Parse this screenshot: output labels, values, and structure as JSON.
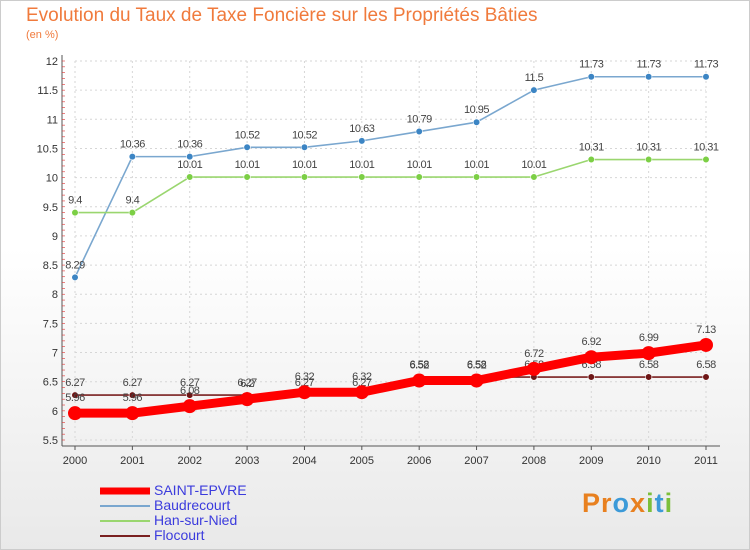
{
  "title": "Evolution du Taux de Taxe Foncière sur les Propriétés Bâties",
  "subtitle": "(en %)",
  "logo": {
    "text": "Proxiti",
    "letters": [
      "P",
      "r",
      "o",
      "x",
      "i",
      "t",
      "i"
    ],
    "colors": [
      "#e8801f",
      "#e8801f",
      "#3c9ad8",
      "#e8801f",
      "#7cbf3a",
      "#3c9ad8",
      "#7cbf3a"
    ]
  },
  "colors": {
    "title": "#f07a3c",
    "legend_text": "#3b3bdd",
    "axis_text": "#333333"
  },
  "chart_data": {
    "type": "line",
    "title": "Evolution du Taux de Taxe Foncière sur les Propriétés Bâties",
    "ylabel": "(en %)",
    "xlabel": "",
    "ylim": [
      5.5,
      12
    ],
    "yticks": [
      5.5,
      6,
      6.5,
      7,
      7.5,
      8,
      8.5,
      9,
      9.5,
      10,
      10.5,
      11,
      11.5,
      12
    ],
    "ytick_labels": [
      "5.5",
      "6",
      "6.5",
      "7",
      "7.5",
      "8",
      "8.5",
      "9",
      "9.5",
      "10",
      "10.5",
      "11",
      "11.5",
      "12"
    ],
    "x": [
      "2000",
      "2001",
      "2002",
      "2003",
      "2004",
      "2005",
      "2006",
      "2007",
      "2008",
      "2009",
      "2010",
      "2011"
    ],
    "legend_position": "bottom-left",
    "series": [
      {
        "name": "SAINT-EPVRE",
        "color": "#ff0000",
        "style": "thick",
        "values": [
          5.96,
          5.96,
          6.08,
          6.2,
          6.32,
          6.32,
          6.52,
          6.52,
          6.72,
          6.92,
          6.99,
          7.13
        ],
        "labels": [
          "5.96",
          "5.96",
          "6.08",
          "6.2",
          "6.32",
          "6.32",
          "6.52",
          "6.52",
          "6.72",
          "6.92",
          "6.99",
          "7.13"
        ]
      },
      {
        "name": "Baudrecourt",
        "color": "#7aa7cf",
        "marker": "#3c85c4",
        "style": "thin",
        "values": [
          8.29,
          10.36,
          10.36,
          10.52,
          10.52,
          10.63,
          10.79,
          10.95,
          11.5,
          11.73,
          11.73,
          11.73
        ],
        "labels": [
          "8.29",
          "10.36",
          "10.36",
          "10.52",
          "10.52",
          "10.63",
          "10.79",
          "10.95",
          "11.5",
          "11.73",
          "11.73",
          "11.73"
        ]
      },
      {
        "name": "Han-sur-Nied",
        "color": "#9ad66f",
        "marker": "#7ccf45",
        "style": "thin",
        "values": [
          9.4,
          9.4,
          10.01,
          10.01,
          10.01,
          10.01,
          10.01,
          10.01,
          10.01,
          10.31,
          10.31,
          10.31
        ],
        "labels": [
          "9.4",
          "9.4",
          "10.01",
          "10.01",
          "10.01",
          "10.01",
          "10.01",
          "10.01",
          "10.01",
          "10.31",
          "10.31",
          "10.31"
        ]
      },
      {
        "name": "Flocourt",
        "color": "#7a2020",
        "marker": "#6e1616",
        "style": "thin",
        "values": [
          6.27,
          6.27,
          6.27,
          6.27,
          6.27,
          6.27,
          6.58,
          6.58,
          6.58,
          6.58,
          6.58,
          6.58
        ],
        "labels": [
          "6.27",
          "6.27",
          "6.27",
          "6.27",
          "6.27",
          "6.27",
          "6.58",
          "6.58",
          "6.58",
          "6.58",
          "6.58",
          "6.58"
        ]
      }
    ]
  }
}
